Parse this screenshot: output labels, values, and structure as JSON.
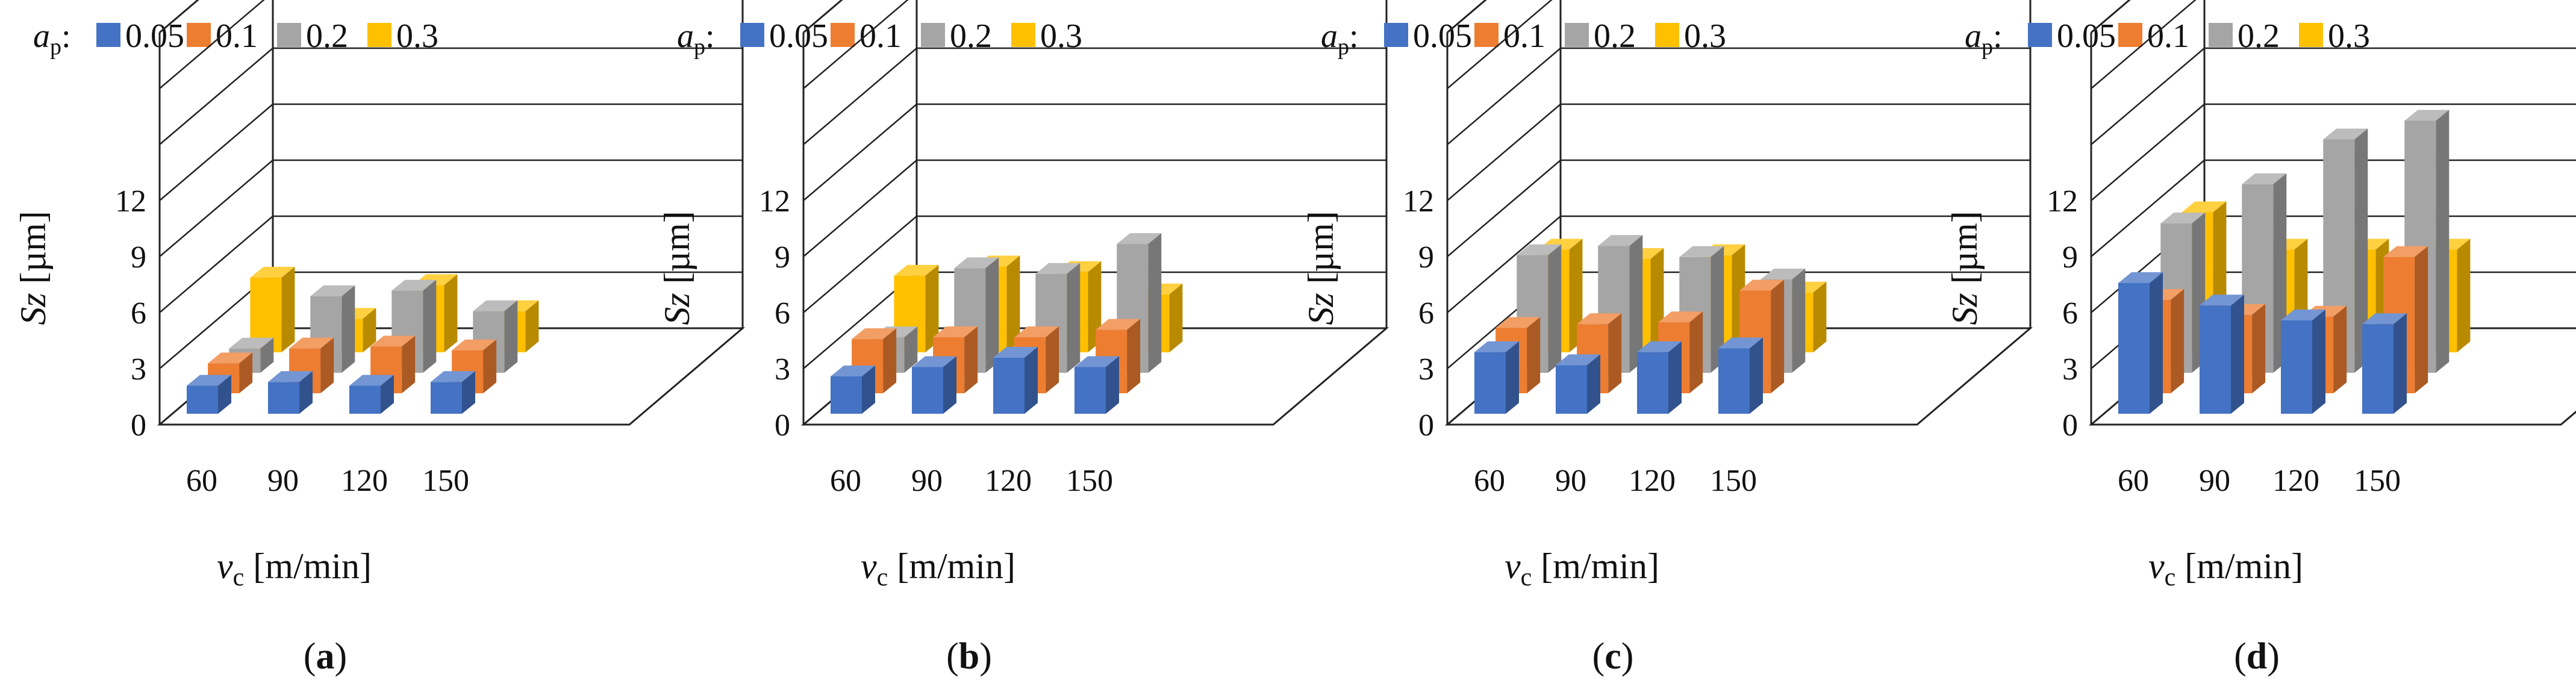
{
  "legend_prefix": {
    "symbol": "a",
    "subscript": "p",
    "suffix": ":"
  },
  "series_colors": [
    "#4472C4",
    "#ED7D31",
    "#A5A5A5",
    "#FFC000"
  ],
  "chart_data": [
    {
      "type": "bar",
      "caption": "(a)",
      "categories": [
        "60",
        "90",
        "120",
        "150"
      ],
      "series": [
        {
          "name": "0.05",
          "values": [
            1.5,
            1.7,
            1.5,
            1.7
          ]
        },
        {
          "name": "0.1",
          "values": [
            1.6,
            2.4,
            2.5,
            2.3
          ]
        },
        {
          "name": "0.2",
          "values": [
            1.3,
            4.1,
            4.4,
            3.3
          ]
        },
        {
          "name": "0.3",
          "values": [
            4.0,
            1.8,
            3.6,
            2.2
          ]
        }
      ],
      "xlabel": {
        "symbol": "v",
        "subscript": "c",
        "unit": "[m/min]"
      },
      "ylabel": {
        "symbol": "Sz",
        "unit": "[µm]"
      },
      "yticks": [
        "0",
        "3",
        "6",
        "9",
        "12"
      ],
      "ylim": [
        0,
        21
      ]
    },
    {
      "type": "bar",
      "caption": "(b)",
      "categories": [
        "60",
        "90",
        "120",
        "150"
      ],
      "series": [
        {
          "name": "0.05",
          "values": [
            2.0,
            2.5,
            3.0,
            2.5
          ]
        },
        {
          "name": "0.1",
          "values": [
            2.9,
            3.0,
            3.0,
            3.4
          ]
        },
        {
          "name": "0.2",
          "values": [
            1.9,
            5.6,
            5.3,
            6.9
          ]
        },
        {
          "name": "0.3",
          "values": [
            4.1,
            4.6,
            4.3,
            3.1
          ]
        }
      ],
      "xlabel": {
        "symbol": "v",
        "subscript": "c",
        "unit": "[m/min]"
      },
      "ylabel": {
        "symbol": "Sz",
        "unit": "[µm]"
      },
      "yticks": [
        "0",
        "3",
        "6",
        "9",
        "12"
      ],
      "ylim": [
        0,
        21
      ]
    },
    {
      "type": "bar",
      "caption": "(c)",
      "categories": [
        "60",
        "90",
        "120",
        "150"
      ],
      "series": [
        {
          "name": "0.05",
          "values": [
            3.3,
            2.6,
            3.3,
            3.5
          ]
        },
        {
          "name": "0.1",
          "values": [
            3.5,
            3.7,
            3.8,
            5.5
          ]
        },
        {
          "name": "0.2",
          "values": [
            6.3,
            6.8,
            6.2,
            5.0
          ]
        },
        {
          "name": "0.3",
          "values": [
            5.5,
            5.0,
            5.2,
            3.2
          ]
        }
      ],
      "xlabel": {
        "symbol": "v",
        "subscript": "c",
        "unit": "[m/min]"
      },
      "ylabel": {
        "symbol": "Sz",
        "unit": "[µm]"
      },
      "yticks": [
        "0",
        "3",
        "6",
        "9",
        "12"
      ],
      "ylim": [
        0,
        21
      ]
    },
    {
      "type": "bar",
      "caption": "(d)",
      "categories": [
        "60",
        "90",
        "120",
        "150"
      ],
      "series": [
        {
          "name": "0.05",
          "values": [
            7.0,
            5.8,
            5.0,
            4.8
          ]
        },
        {
          "name": "0.1",
          "values": [
            5.0,
            4.2,
            4.1,
            7.3
          ]
        },
        {
          "name": "0.2",
          "values": [
            8.0,
            10.1,
            12.5,
            13.5
          ]
        },
        {
          "name": "0.3",
          "values": [
            7.5,
            5.5,
            5.5,
            5.5
          ]
        }
      ],
      "xlabel": {
        "symbol": "v",
        "subscript": "c",
        "unit": "[m/min]"
      },
      "ylabel": {
        "symbol": "Sz",
        "unit": "[µm]"
      },
      "yticks": [
        "0",
        "3",
        "6",
        "9",
        "12"
      ],
      "ylim": [
        0,
        21
      ]
    }
  ]
}
